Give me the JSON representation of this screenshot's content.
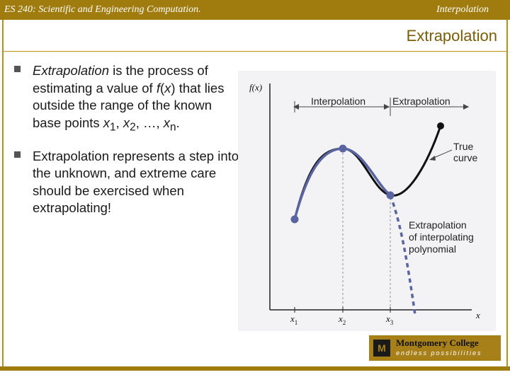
{
  "header": {
    "course": "ES 240: Scientific and Engineering Computation.",
    "section": "Interpolation"
  },
  "slide": {
    "title": "Extrapolation",
    "bullets": [
      {
        "term": "Extrapolation",
        "text1": " is the process of estimating a value of ",
        "fx_f": "f",
        "fx_x": "x",
        "text2": " that lies outside the range of the known base points ",
        "x": "x",
        "sub1": "1",
        "sub2": "2",
        "subn": "n",
        "ellipsis": "…"
      },
      {
        "text": "Extrapolation represents a step into the unknown, and extreme care should be exercised when extrapolating!"
      }
    ]
  },
  "figure": {
    "y_axis_label": "f(x)",
    "x_axis_label": "x",
    "interp_label": "Interpolation",
    "extrap_label": "Extrapolation",
    "true_curve_label": [
      "True",
      "curve"
    ],
    "extrap_poly_label": [
      "Extrapolation",
      "of interpolating",
      "polynomial"
    ],
    "tick_labels": [
      "x",
      "x",
      "x"
    ],
    "tick_subs": [
      "1",
      "2",
      "3"
    ],
    "colors": {
      "true_curve": "#111111",
      "poly": "#5a64a0",
      "arrow": "#444444"
    }
  },
  "logo": {
    "mark": "M",
    "name": "Montgomery College",
    "tagline": "endless possibilities"
  }
}
